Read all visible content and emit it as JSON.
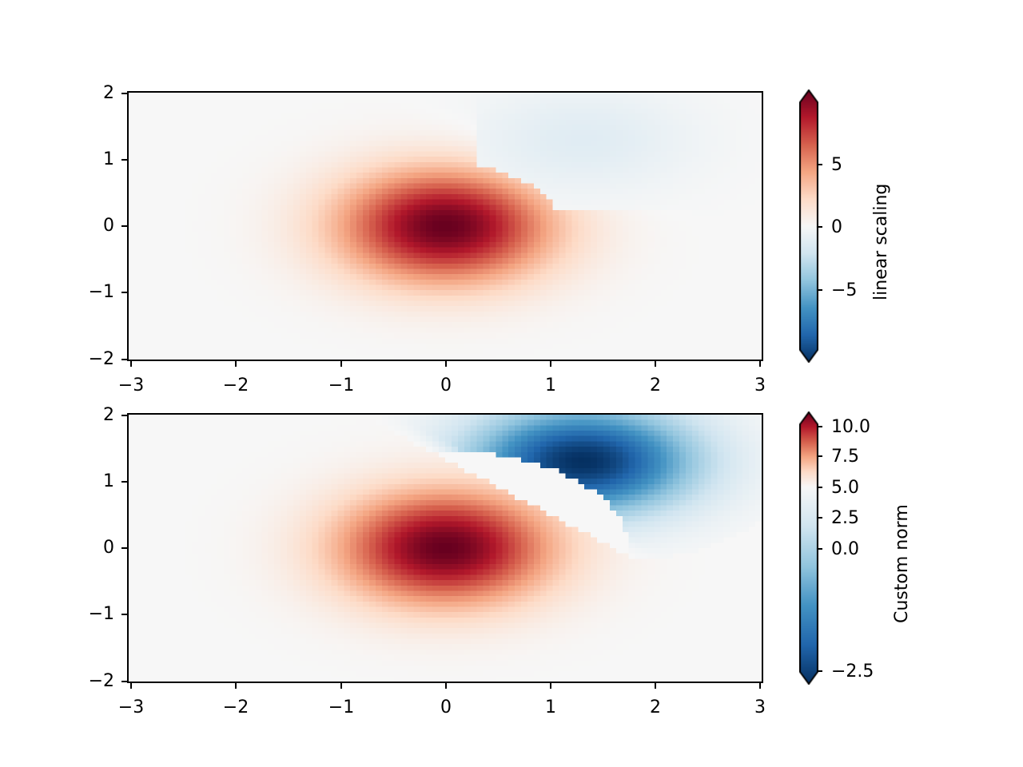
{
  "chart_data": [
    {
      "type": "heatmap",
      "title": "",
      "xlabel": "",
      "ylabel": "",
      "xlim": [
        -3,
        3
      ],
      "ylim": [
        -2,
        2
      ],
      "x_ticks": [
        "−3",
        "−2",
        "−1",
        "0",
        "1",
        "2",
        "3"
      ],
      "y_ticks": [
        "2",
        "1",
        "0",
        "−1",
        "−2"
      ],
      "colormap": "RdBu_r",
      "norm": "linear",
      "colorbar": {
        "label": "linear scaling",
        "ticks": [
          "5",
          "0",
          "−5"
        ],
        "range": [
          -10,
          10
        ],
        "extend": "both"
      },
      "description": "Z = 10*exp(-x^2-y^2) - 0.5*10*exp(-(x-1)^2-(y-1)^2) shaped field: strong positive peak (~10) at (0,0), weak negative lobe near (1.3,1.2)"
    },
    {
      "type": "heatmap",
      "title": "",
      "xlabel": "",
      "ylabel": "",
      "xlim": [
        -3,
        3
      ],
      "ylim": [
        -2,
        2
      ],
      "x_ticks": [
        "−3",
        "−2",
        "−1",
        "0",
        "1",
        "2",
        "3"
      ],
      "y_ticks": [
        "2",
        "1",
        "0",
        "−1",
        "−2"
      ],
      "colormap": "RdBu_r",
      "norm": "custom (two-slope, center 5.0)",
      "colorbar": {
        "label": "Custom norm",
        "ticks": [
          "10.0",
          "7.5",
          "5.0",
          "2.5",
          "0.0",
          "−2.5"
        ],
        "range": [
          -2.5,
          10
        ],
        "extend": "both"
      },
      "description": "Same field with custom norm: positive peak (~10) at (0,0) red, negative lobe near (1.3,1.3) rendered strongly blue"
    }
  ],
  "plots": {
    "top": {
      "x_ticks": [
        "−3",
        "−2",
        "−1",
        "0",
        "1",
        "2",
        "3"
      ],
      "y_ticks": [
        "2",
        "1",
        "0",
        "−1",
        "−2"
      ],
      "colorbar_label": "linear scaling",
      "colorbar_ticks": [
        "5",
        "0",
        "−5"
      ]
    },
    "bottom": {
      "x_ticks": [
        "−3",
        "−2",
        "−1",
        "0",
        "1",
        "2",
        "3"
      ],
      "y_ticks": [
        "2",
        "1",
        "0",
        "−1",
        "−2"
      ],
      "colorbar_label": "Custom norm",
      "colorbar_ticks": [
        "10.0",
        "7.5",
        "5.0",
        "2.5",
        "0.0",
        "−2.5"
      ]
    }
  }
}
